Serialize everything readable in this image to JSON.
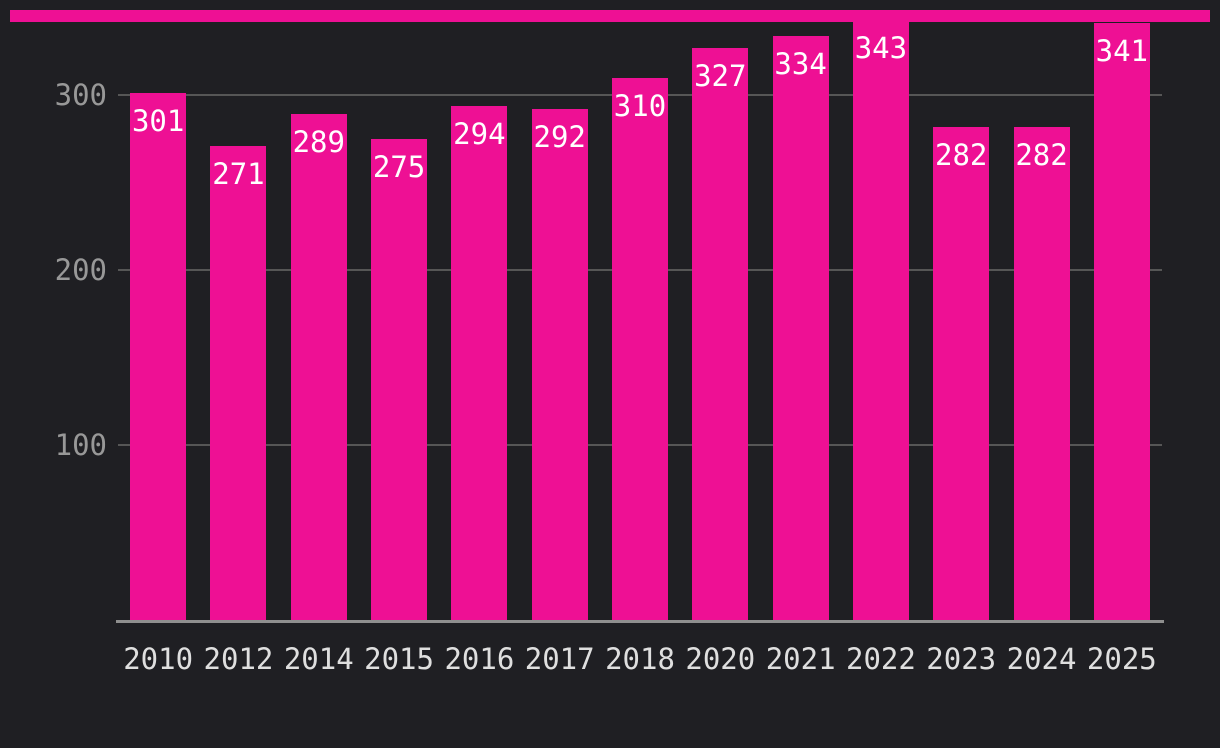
{
  "page": {
    "background_color": "#1f1f23"
  },
  "top_accent": {
    "color": "#ee1094"
  },
  "chart_data": {
    "type": "bar",
    "title": "",
    "xlabel": "",
    "ylabel": "",
    "categories": [
      "2010",
      "2012",
      "2014",
      "2015",
      "2016",
      "2017",
      "2018",
      "2020",
      "2021",
      "2022",
      "2023",
      "2024",
      "2025"
    ],
    "values": [
      301,
      271,
      289,
      275,
      294,
      292,
      310,
      327,
      334,
      343,
      282,
      282,
      341
    ],
    "value_labels": [
      "301",
      "271",
      "289",
      "275",
      "294",
      "292",
      "310",
      "327",
      "334",
      "343",
      "282",
      "282",
      "341"
    ],
    "yticks": [
      100,
      200,
      300
    ],
    "ylim": [
      0,
      354
    ],
    "grid": true,
    "legend": "none",
    "bar_color": "#ee1094",
    "value_label_color": "#ffffff",
    "gridline_color": "#565656",
    "axis_line_color": "#8f8f8f",
    "ytick_color": "#989898",
    "xtick_color": "#dfdfdf"
  }
}
